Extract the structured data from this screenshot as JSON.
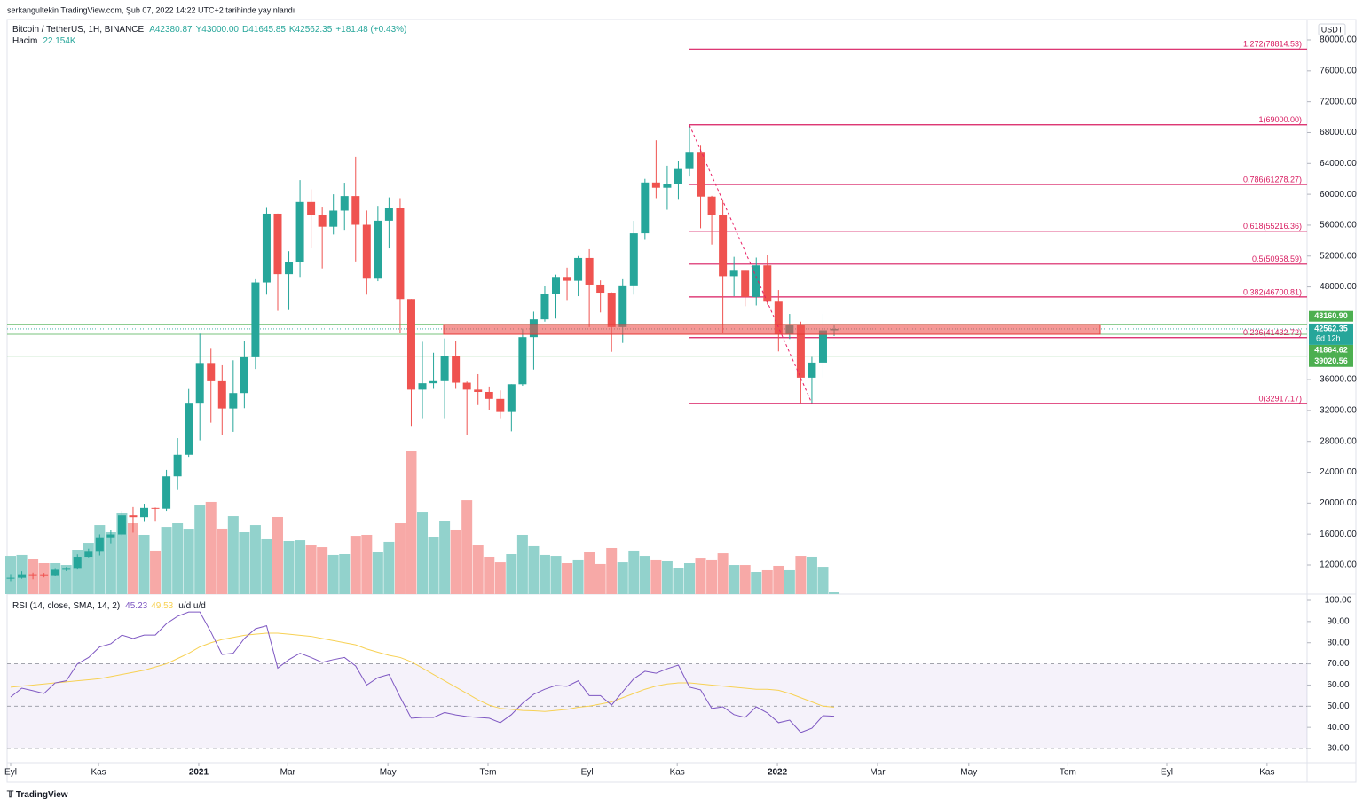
{
  "header": {
    "byline": "serkangultekin TradingView.com, Şub 07, 2022 14:22 UTC+2 tarihinde yayınlandı",
    "currency": "USDT",
    "logo": "TradingView"
  },
  "chart_data": [
    {
      "type": "candlestick",
      "title": "Bitcoin / TetherUS, 1H, BINANCE",
      "ohlc_labels": [
        "A42380.87",
        "Y43000.00",
        "D41645.85",
        "K42562.35"
      ],
      "change": "+181.48 (+0.43%)",
      "up_color": "#26a69a",
      "down_color": "#ef5350",
      "open": [
        10280,
        10320,
        10780,
        10770,
        10670,
        11380,
        11500,
        13030,
        13800,
        15480,
        15960,
        18410,
        18180,
        19370,
        19270,
        23460,
        26270,
        33000,
        38150,
        35790,
        32260,
        34260,
        38890,
        48580,
        57490,
        49660,
        51200,
        59000,
        57350,
        55800,
        57890,
        59770,
        56050,
        49070,
        56580,
        58240,
        46430,
        34700,
        35530,
        35800,
        39000,
        35600,
        34700,
        34400,
        33500,
        31800,
        35400,
        41500,
        43800,
        47100,
        49300,
        48800,
        51750,
        48300,
        47260,
        42800,
        48200,
        54950,
        61530,
        60850,
        61300,
        63270,
        65500,
        59700,
        57270,
        49400,
        50100,
        46700,
        50800,
        46200,
        41900,
        43100,
        36250,
        38200,
        42380.87
      ],
      "high": [
        10800,
        11180,
        10990,
        10950,
        11490,
        11740,
        13350,
        14100,
        15970,
        16480,
        19000,
        19480,
        19920,
        19420,
        24300,
        28420,
        34780,
        41950,
        40100,
        37850,
        38500,
        40950,
        49000,
        58350,
        57500,
        52640,
        61840,
        60640,
        58400,
        60000,
        61500,
        64850,
        57900,
        58500,
        59600,
        59500,
        46430,
        40900,
        39480,
        41330,
        41000,
        35750,
        36700,
        35100,
        34600,
        35400,
        42600,
        44800,
        48140,
        49600,
        50500,
        52000,
        52900,
        48850,
        47300,
        49000,
        56560,
        62000,
        67000,
        63700,
        64300,
        69000,
        66300,
        59800,
        59200,
        51900,
        50100,
        51800,
        52100,
        47600,
        44500,
        43500,
        38930,
        44500,
        43000
      ],
      "low": [
        9880,
        10200,
        10130,
        10370,
        10530,
        11200,
        11410,
        12950,
        13200,
        14800,
        15790,
        16200,
        17570,
        17600,
        19000,
        21800,
        26000,
        28130,
        30420,
        28850,
        29240,
        32300,
        37370,
        47000,
        44900,
        45000,
        49300,
        53000,
        50400,
        54800,
        55400,
        51300,
        47000,
        48750,
        53000,
        42000,
        30000,
        31000,
        34800,
        31000,
        34800,
        28800,
        32700,
        32100,
        31000,
        29300,
        35200,
        37300,
        43500,
        43900,
        46300,
        46800,
        42800,
        44700,
        39600,
        40750,
        47000,
        54100,
        59500,
        58000,
        59400,
        62300,
        55600,
        53500,
        42000,
        46800,
        45500,
        45600,
        45700,
        39650,
        41260,
        33000,
        32917.17,
        36250,
        41645.85
      ],
      "close": [
        10320,
        10780,
        10770,
        10670,
        11380,
        11500,
        13030,
        13800,
        15480,
        15960,
        18410,
        18180,
        19370,
        19270,
        23460,
        26270,
        33000,
        38150,
        35790,
        32260,
        34260,
        38890,
        48580,
        57490,
        49660,
        51200,
        59000,
        57350,
        55800,
        57890,
        59770,
        56050,
        49070,
        56580,
        58240,
        46430,
        34700,
        35530,
        35800,
        39000,
        35600,
        34700,
        34400,
        33500,
        31800,
        35400,
        41500,
        43800,
        47100,
        49300,
        48800,
        51750,
        48300,
        47260,
        42800,
        48200,
        54950,
        61530,
        60850,
        61300,
        63270,
        65500,
        59700,
        57270,
        49400,
        50100,
        46700,
        50800,
        46200,
        41900,
        43100,
        36250,
        38200,
        42380.87,
        42562.35
      ],
      "ylim": [
        8209,
        82642
      ],
      "xlim": [
        -0.32,
        116.5
      ],
      "yticks": [
        {
          "value": 12000,
          "label": "12000.00"
        },
        {
          "value": 16000,
          "label": "16000.00"
        },
        {
          "value": 20000,
          "label": "20000.00"
        },
        {
          "value": 24000,
          "label": "24000.00"
        },
        {
          "value": 28000,
          "label": "28000.00"
        },
        {
          "value": 32000,
          "label": "32000.00"
        },
        {
          "value": 36000,
          "label": "36000.00"
        },
        {
          "value": 48000,
          "label": "48000.00"
        },
        {
          "value": 52000,
          "label": "52000.00"
        },
        {
          "value": 56000,
          "label": "56000.00"
        },
        {
          "value": 60000,
          "label": "60000.00"
        },
        {
          "value": 64000,
          "label": "64000.00"
        },
        {
          "value": 68000,
          "label": "68000.00"
        },
        {
          "value": 72000,
          "label": "72000.00"
        },
        {
          "value": 76000,
          "label": "76000.00"
        },
        {
          "value": 80000,
          "label": "80000.00"
        }
      ],
      "xticks": [
        {
          "value": 0,
          "label": "Eyl"
        },
        {
          "value": 7.9,
          "label": "Kas"
        },
        {
          "value": 16.9,
          "label": "2021"
        },
        {
          "value": 24.9,
          "label": "Mar"
        },
        {
          "value": 33.9,
          "label": "May"
        },
        {
          "value": 42.9,
          "label": "Tem"
        },
        {
          "value": 51.8,
          "label": "Eyl"
        },
        {
          "value": 59.9,
          "label": "Kas"
        },
        {
          "value": 68.9,
          "label": "2022"
        },
        {
          "value": 77.9,
          "label": "Mar"
        },
        {
          "value": 86.1,
          "label": "May"
        },
        {
          "value": 95,
          "label": "Tem"
        },
        {
          "value": 103.9,
          "label": "Eyl"
        },
        {
          "value": 112.9,
          "label": "Kas"
        }
      ],
      "price_lines": [
        {
          "value": 43160.9,
          "label": "43160.90",
          "color": "#4caf50"
        },
        {
          "value": 42562.35,
          "label": "42562.35",
          "color": "#26a69a",
          "countdown": "6d 12h"
        },
        {
          "value": 41864.62,
          "label": "41864.62",
          "color": "#4caf50"
        },
        {
          "value": 39020.56,
          "label": "39020.56",
          "color": "#4caf50"
        }
      ],
      "fib_color": "#d81b60",
      "fib_levels": [
        {
          "value": 78814.53,
          "label": "1.272(78814.53)"
        },
        {
          "value": 69000,
          "label": "1(69000.00)"
        },
        {
          "value": 61278.27,
          "label": "0.786(61278.27)"
        },
        {
          "value": 55216.36,
          "label": "0.618(55216.36)"
        },
        {
          "value": 50958.59,
          "label": "0.5(50958.59)"
        },
        {
          "value": 46700.81,
          "label": "0.382(46700.81)"
        },
        {
          "value": 41432.72,
          "label": "0.236(41432.72)"
        },
        {
          "value": 32917.17,
          "label": "0(32917.17)"
        }
      ]
    },
    {
      "type": "bar",
      "title": "Hacim",
      "value_label": "22.154K",
      "up_color": "#92d2cc",
      "down_color": "#f7a9a7",
      "values": [
        318,
        326,
        296,
        259,
        259,
        244,
        370,
        429,
        577,
        518,
        681,
        592,
        496,
        363,
        562,
        592,
        540,
        740,
        770,
        548,
        651,
        518,
        577,
        459,
        644,
        444,
        451,
        407,
        392,
        326,
        333,
        488,
        496,
        348,
        437,
        592,
        1199,
        688,
        474,
        614,
        533,
        784,
        407,
        311,
        266,
        333,
        496,
        400,
        326,
        318,
        259,
        289,
        348,
        252,
        385,
        266,
        363,
        318,
        289,
        274,
        222,
        259,
        303,
        289,
        340,
        244,
        244,
        185,
        200,
        237,
        200,
        318,
        311,
        229,
        22.154
      ]
    },
    {
      "type": "line",
      "title": "RSI (14, close, SMA, 14, 2)",
      "suffix": "u/d u/d",
      "ylim": [
        23.3,
        102.1
      ],
      "bands": [
        70,
        50,
        30
      ],
      "yticks": [
        {
          "value": 100,
          "label": "100.00"
        },
        {
          "value": 90,
          "label": "90.00"
        },
        {
          "value": 80,
          "label": "80.00"
        },
        {
          "value": 70,
          "label": "70.00"
        },
        {
          "value": 60,
          "label": "60.00"
        },
        {
          "value": 50,
          "label": "50.00"
        },
        {
          "value": 40,
          "label": "40.00"
        },
        {
          "value": 30,
          "label": "30.00"
        }
      ],
      "series": [
        {
          "name": "RSI",
          "color": "#7e57c2",
          "values": [
            54.3,
            58.5,
            57.3,
            56,
            61,
            62,
            70,
            73,
            78,
            79.5,
            83.6,
            82,
            83.6,
            83.6,
            89,
            92.5,
            94.5,
            94.5,
            85,
            74.4,
            75,
            82,
            86.6,
            88,
            68,
            72,
            75,
            73,
            70.7,
            72,
            73,
            69,
            60,
            63.5,
            65,
            54.3,
            44.3,
            44.7,
            44.7,
            47,
            45.9,
            45.1,
            44.7,
            44.3,
            42.2,
            46,
            51.4,
            55.6,
            58,
            59.8,
            59.4,
            62,
            55,
            55,
            50.5,
            56.8,
            63,
            66.5,
            65.6,
            67.7,
            69.4,
            59,
            57.7,
            48.9,
            49.7,
            46,
            44.7,
            49.7,
            46.8,
            42.2,
            43.4,
            37.6,
            39.6,
            45.5,
            45.23
          ]
        },
        {
          "name": "SMA",
          "color": "#f7d154",
          "values": [
            59,
            59.5,
            60,
            60.5,
            61,
            61.5,
            62,
            62.5,
            63,
            64,
            65,
            66,
            67,
            68.5,
            70,
            72.5,
            75,
            78,
            80,
            81.5,
            82.5,
            83.5,
            84,
            84.5,
            84.5,
            84,
            83.5,
            83,
            82,
            81,
            80,
            79,
            77,
            75.5,
            74,
            73,
            71,
            68,
            65,
            62,
            59,
            56,
            53,
            50.5,
            49,
            48.5,
            48,
            47.8,
            47.5,
            48,
            48.5,
            49.5,
            50,
            51,
            52,
            54,
            56,
            58,
            59.5,
            60.5,
            61,
            61,
            60.5,
            60,
            59.5,
            59,
            58.5,
            58,
            58,
            57.5,
            56,
            54,
            52,
            50,
            49.53
          ]
        }
      ]
    }
  ]
}
